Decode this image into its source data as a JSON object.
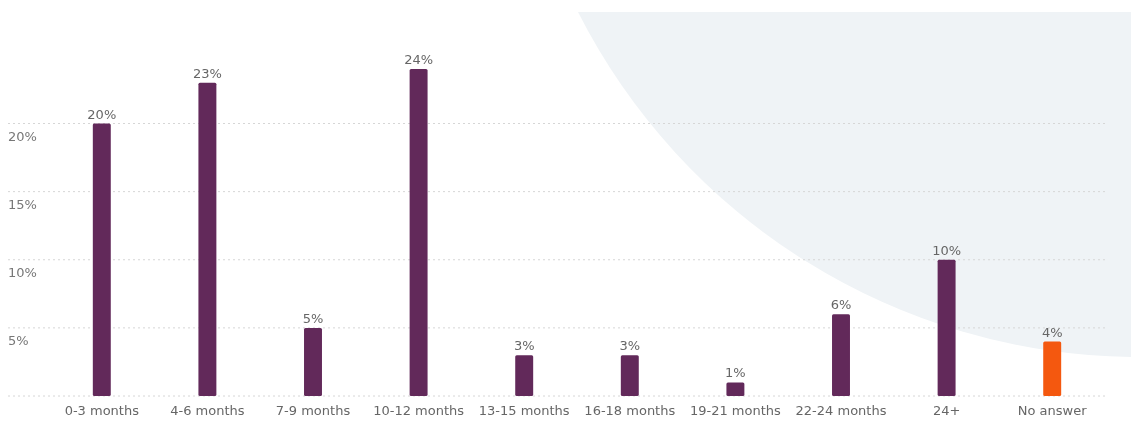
{
  "chart_data": {
    "type": "bar",
    "categories": [
      "0-3 months",
      "4-6 months",
      "7-9 months",
      "10-12 months",
      "13-15 months",
      "16-18 months",
      "19-21 months",
      "22-24 months",
      "24+",
      "No answer"
    ],
    "values": [
      20,
      23,
      5,
      24,
      3,
      3,
      1,
      6,
      10,
      4
    ],
    "colors": [
      "#62295a",
      "#62295a",
      "#62295a",
      "#62295a",
      "#62295a",
      "#62295a",
      "#62295a",
      "#62295a",
      "#62295a",
      "#f4580f"
    ],
    "value_labels": [
      "20%",
      "23%",
      "5%",
      "24%",
      "3%",
      "3%",
      "1%",
      "6%",
      "10%",
      "4%"
    ],
    "ylim": [
      0,
      24
    ],
    "yticks": [
      {
        "value": 0,
        "label": null
      },
      {
        "value": 5,
        "label": "5%"
      },
      {
        "value": 10,
        "label": "10%"
      },
      {
        "value": 15,
        "label": "15%"
      },
      {
        "value": 20,
        "label": "20%"
      }
    ],
    "grid": "y"
  }
}
